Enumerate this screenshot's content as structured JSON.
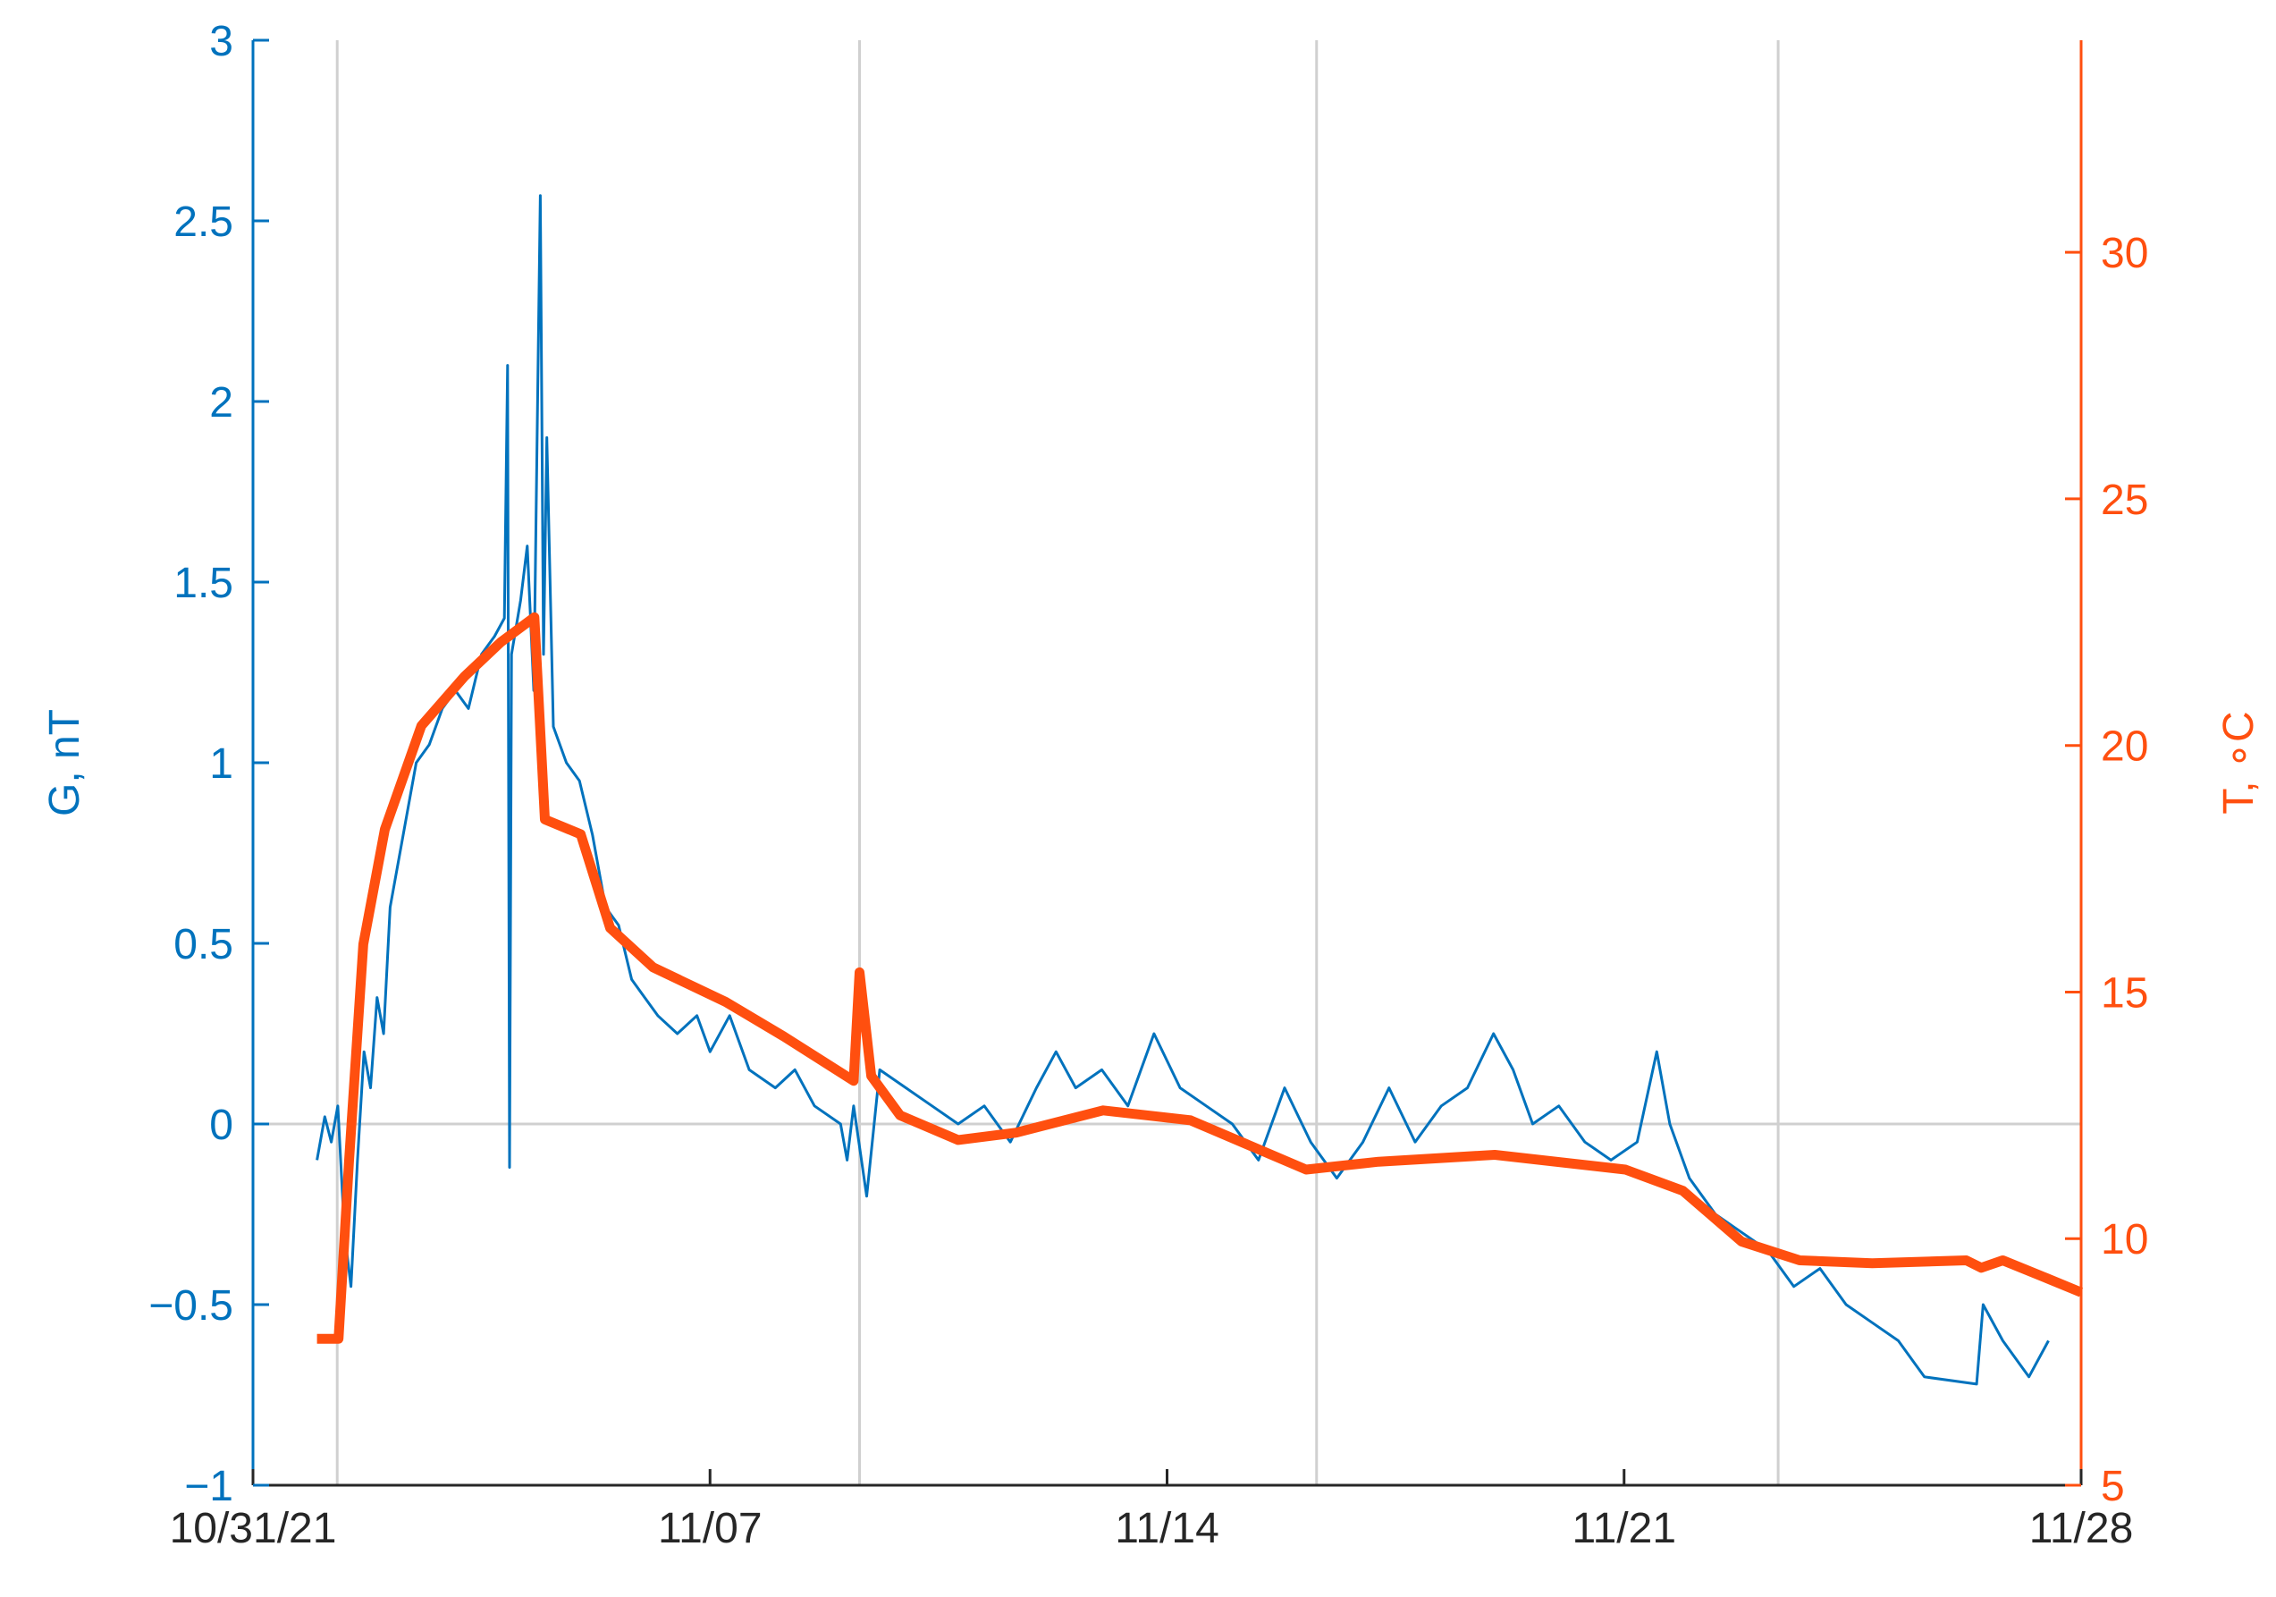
{
  "chart_data": {
    "type": "line",
    "xlim": [
      0,
      28
    ],
    "xticks": [
      {
        "value": 0,
        "label": "10/31/21"
      },
      {
        "value": 7,
        "label": "11/07"
      },
      {
        "value": 14,
        "label": "11/14"
      },
      {
        "value": 21,
        "label": "11/21"
      },
      {
        "value": 28,
        "label": "11/28"
      }
    ],
    "xgrid": [
      1.29,
      9.29,
      16.29,
      23.36
    ],
    "ylim": [
      -1,
      3
    ],
    "yticks": [
      {
        "value": -1,
        "label": "−1"
      },
      {
        "value": -0.5,
        "label": "−0.5"
      },
      0,
      0.5,
      1,
      1.5,
      2,
      2.5,
      3
    ],
    "ygrid": [
      0
    ],
    "y2lim": [
      5,
      34.3
    ],
    "y2ticks": [
      5,
      10,
      15,
      20,
      25,
      30
    ],
    "ylabel": "G, nT",
    "y2label": "T, ∘C",
    "series": [
      {
        "color": "#0072bd",
        "x": [
          0.98,
          1.1,
          1.2,
          1.3,
          1.4,
          1.5,
          1.6,
          1.7,
          1.8,
          1.9,
          2.0,
          2.1,
          2.3,
          2.5,
          2.7,
          2.9,
          3.1,
          3.3,
          3.5,
          3.7,
          3.85,
          3.9,
          3.93,
          3.96,
          4.1,
          4.2,
          4.3,
          4.4,
          4.45,
          4.5,
          4.6,
          4.8,
          5.0,
          5.2,
          5.4,
          5.6,
          5.8,
          6.0,
          6.2,
          6.5,
          6.8,
          7.0,
          7.3,
          7.6,
          8.0,
          8.3,
          8.6,
          9.0,
          9.1,
          9.2,
          9.4,
          9.6,
          10.0,
          10.4,
          10.8,
          11.2,
          11.6,
          12.0,
          12.3,
          12.6,
          13.0,
          13.4,
          13.8,
          14.2,
          14.6,
          15.0,
          15.4,
          15.8,
          16.2,
          16.6,
          17.0,
          17.4,
          17.8,
          18.2,
          18.6,
          19.0,
          19.3,
          19.6,
          20.0,
          20.4,
          20.8,
          21.2,
          21.5,
          21.7,
          22.0,
          22.4,
          22.8,
          23.2,
          23.6,
          24.0,
          24.4,
          24.8,
          25.2,
          25.6,
          26.4,
          26.5,
          26.8,
          27.2,
          27.5
        ],
        "values": [
          -0.1,
          0.02,
          -0.05,
          0.05,
          -0.3,
          -0.45,
          -0.1,
          0.2,
          0.1,
          0.35,
          0.25,
          0.6,
          0.8,
          1.0,
          1.05,
          1.15,
          1.2,
          1.15,
          1.3,
          1.35,
          1.4,
          2.1,
          -0.12,
          1.3,
          1.45,
          1.6,
          1.2,
          2.57,
          1.3,
          1.9,
          1.1,
          1.0,
          0.95,
          0.8,
          0.6,
          0.55,
          0.4,
          0.35,
          0.3,
          0.25,
          0.3,
          0.2,
          0.3,
          0.15,
          0.1,
          0.15,
          0.05,
          0.0,
          -0.1,
          0.05,
          -0.2,
          0.15,
          0.1,
          0.05,
          0.0,
          0.05,
          -0.05,
          0.1,
          0.2,
          0.1,
          0.15,
          0.05,
          0.25,
          0.1,
          0.05,
          0.0,
          -0.1,
          0.1,
          -0.05,
          -0.15,
          -0.05,
          0.1,
          -0.05,
          0.05,
          0.1,
          0.25,
          0.15,
          0.0,
          0.05,
          -0.05,
          -0.1,
          -0.05,
          0.2,
          0.0,
          -0.15,
          -0.25,
          -0.3,
          -0.35,
          -0.45,
          -0.4,
          -0.5,
          -0.55,
          -0.6,
          -0.7,
          -0.72,
          -0.5,
          -0.6,
          -0.7,
          -0.6
        ]
      },
      {
        "color": "#ff4f0f",
        "axis": "y2",
        "x": [
          0.98,
          1.31,
          1.47,
          1.69,
          2.02,
          2.58,
          3.24,
          3.8,
          4.31,
          4.47,
          5.02,
          5.47,
          6.13,
          7.24,
          8.13,
          9.2,
          9.29,
          9.47,
          9.91,
          10.8,
          11.69,
          13.02,
          14.36,
          16.13,
          17.24,
          19.02,
          21.02,
          21.9,
          22.8,
          23.69,
          24.8,
          26.24,
          26.47,
          26.8,
          27.47,
          28.0
        ],
        "values": [
          7.97,
          7.97,
          11.56,
          15.97,
          18.3,
          20.4,
          21.4,
          22.1,
          22.6,
          18.5,
          18.2,
          16.3,
          15.5,
          14.8,
          14.1,
          13.2,
          15.4,
          13.3,
          12.5,
          12.0,
          12.15,
          12.6,
          12.4,
          11.4,
          11.56,
          11.7,
          11.4,
          10.97,
          9.94,
          9.56,
          9.5,
          9.56,
          9.41,
          9.56,
          9.2,
          8.91
        ]
      }
    ]
  }
}
